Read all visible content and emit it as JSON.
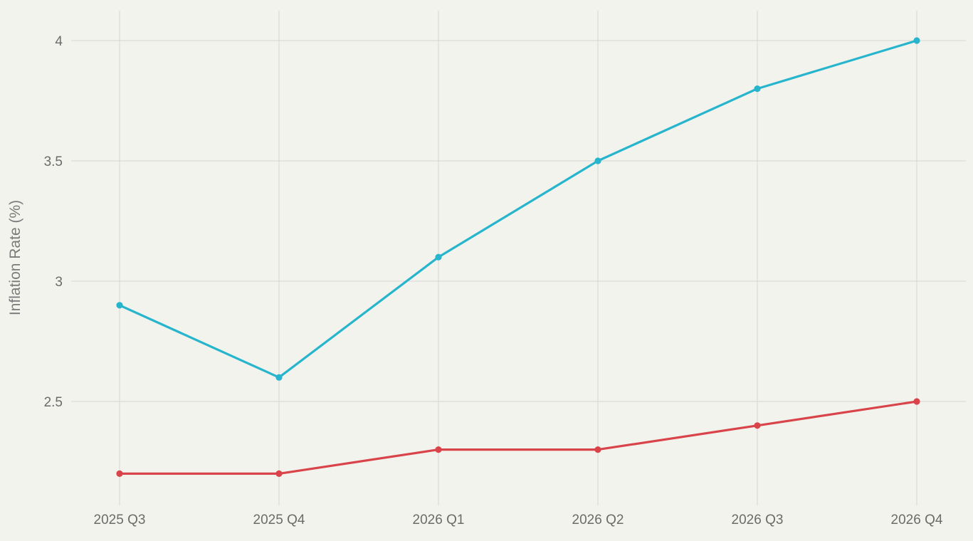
{
  "chart_data": {
    "type": "line",
    "title": "",
    "xlabel": "",
    "ylabel": "Inflation Rate (%)",
    "categories": [
      "2025 Q3",
      "2025 Q4",
      "2026 Q1",
      "2026 Q2",
      "2026 Q3",
      "2026 Q4"
    ],
    "y_ticks": [
      "2.5",
      "3",
      "3.5",
      "4"
    ],
    "ylim": [
      2.07,
      4.12
    ],
    "grid": true,
    "series": [
      {
        "color": "#26b5cc",
        "values": [
          2.9,
          2.6,
          3.1,
          3.5,
          3.8,
          4.0
        ]
      },
      {
        "color": "#d9444a",
        "values": [
          2.2,
          2.2,
          2.3,
          2.3,
          2.4,
          2.5
        ]
      }
    ]
  }
}
